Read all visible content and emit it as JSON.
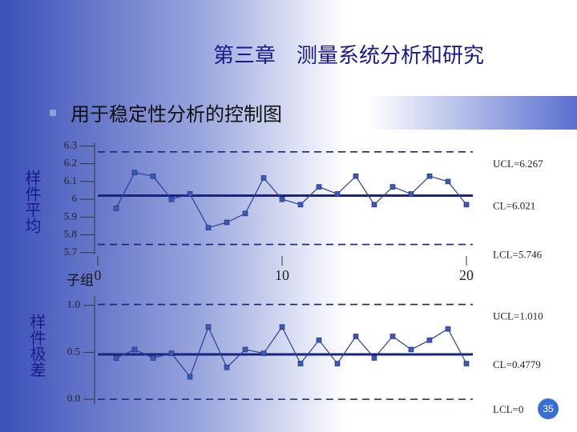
{
  "slide_title": "第三章　测量系统分析和研究",
  "bullet": "用于稳定性分析的控制图",
  "page_number": "35",
  "chart_data": [
    {
      "type": "line",
      "ylabel": "样件平均",
      "xlabel": "子组",
      "x": [
        1,
        2,
        3,
        4,
        5,
        6,
        7,
        8,
        9,
        10,
        11,
        12,
        13,
        14,
        15,
        16,
        17,
        18,
        19,
        20
      ],
      "values": [
        5.95,
        6.15,
        6.13,
        6.0,
        6.03,
        5.84,
        5.87,
        5.92,
        6.12,
        6.0,
        5.97,
        6.07,
        6.03,
        6.13,
        5.97,
        6.07,
        6.03,
        6.13,
        6.1,
        5.97
      ],
      "xlim": [
        0,
        20
      ],
      "xticks": [
        0,
        10,
        20
      ],
      "ylim": [
        5.69,
        6.32
      ],
      "yticks": [
        5.7,
        5.8,
        5.9,
        6.0,
        6.1,
        6.2,
        6.3
      ],
      "limits": [
        {
          "value": 6.267,
          "label": "UCL=6.267"
        },
        {
          "value": 6.021,
          "label": "CL=6.021"
        },
        {
          "value": 5.746,
          "label": "LCL=5.746"
        }
      ],
      "color": "#2a3f9a"
    },
    {
      "type": "line",
      "ylabel": "样件极差",
      "x": [
        1,
        2,
        3,
        4,
        5,
        6,
        7,
        8,
        9,
        10,
        11,
        12,
        13,
        14,
        15,
        16,
        17,
        18,
        19,
        20
      ],
      "values": [
        0.44,
        0.53,
        0.44,
        0.49,
        0.24,
        0.77,
        0.34,
        0.53,
        0.49,
        0.77,
        0.38,
        0.63,
        0.38,
        0.67,
        0.44,
        0.67,
        0.53,
        0.63,
        0.75,
        0.38
      ],
      "xlim": [
        0,
        20
      ],
      "ylim": [
        -0.05,
        1.1
      ],
      "yticks": [
        {
          "value": 0,
          "label": "0.0"
        },
        {
          "value": 0.5,
          "label": "0.5"
        },
        {
          "value": 1.0,
          "label": "1.0"
        }
      ],
      "limits": [
        {
          "value": 1.01,
          "label": "UCL=1.010"
        },
        {
          "value": 0.4779,
          "label": "CL=0.4779"
        },
        {
          "value": 0,
          "label": "LCL=0"
        }
      ],
      "color": "#2a3f9a"
    }
  ]
}
